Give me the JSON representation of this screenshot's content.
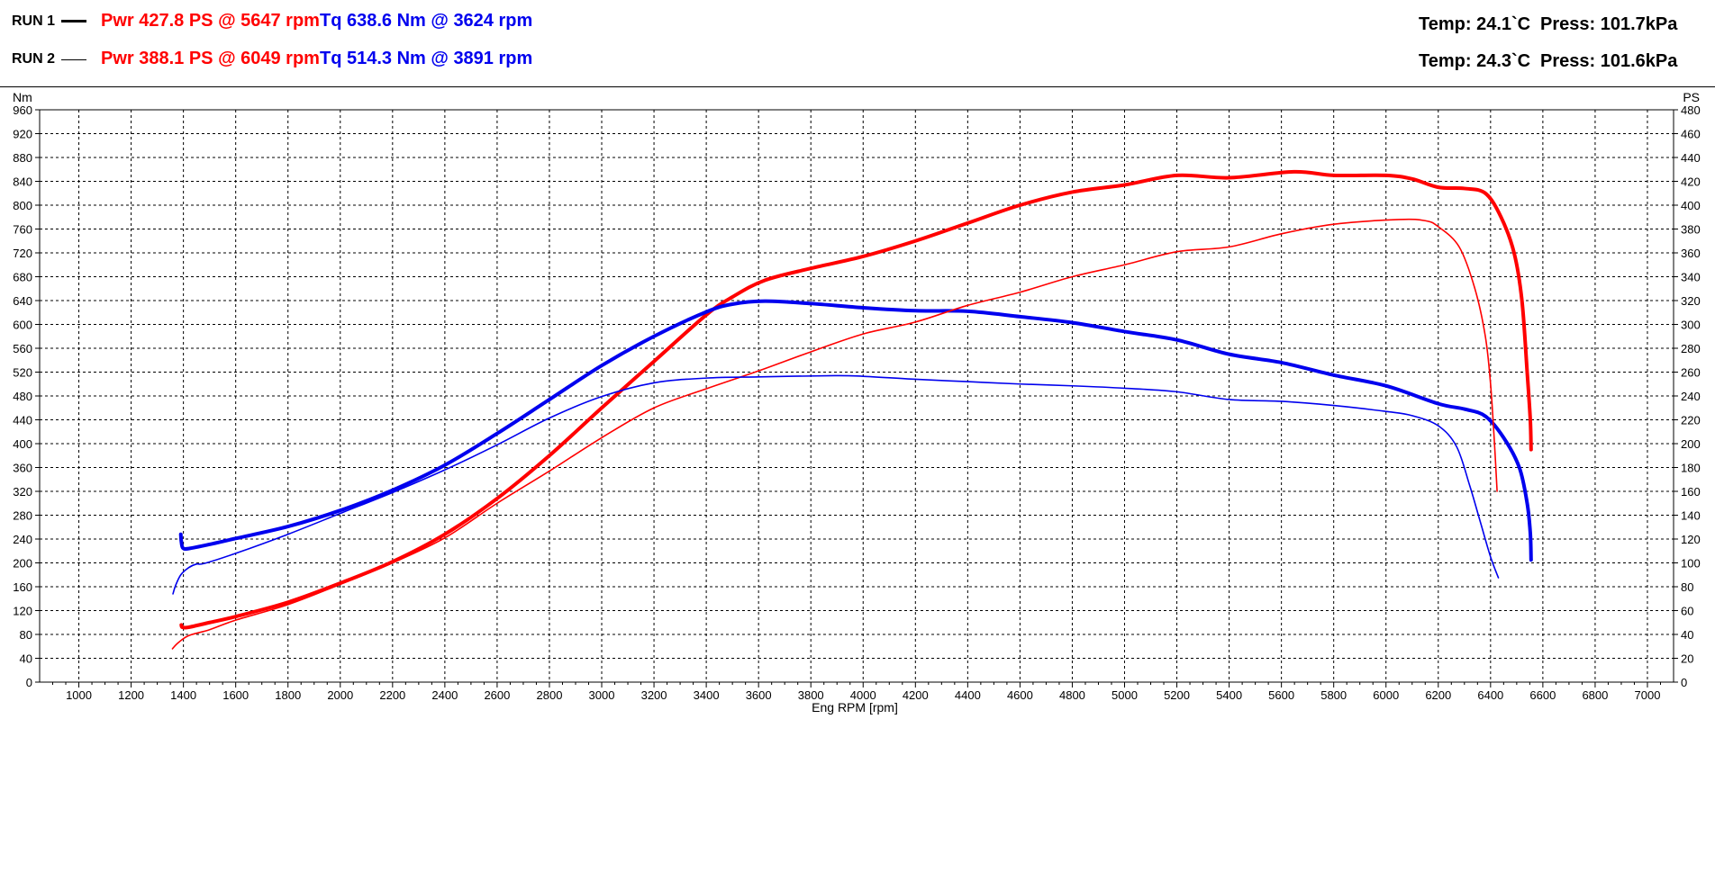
{
  "runs": [
    {
      "label": "RUN 1",
      "power_text": "Pwr  427.8 PS @ 5647 rpm",
      "torque_text": "Tq 638.6 Nm @ 3624 rpm",
      "temp_text": "Temp: 24.1`C",
      "press_text": "Press: 101.7kPa"
    },
    {
      "label": "RUN 2",
      "power_text": "Pwr  388.1 PS @ 6049 rpm",
      "torque_text": "Tq 514.3 Nm @ 3891 rpm",
      "temp_text": "Temp: 24.3`C",
      "press_text": "Press: 101.6kPa"
    }
  ],
  "chart_data": {
    "type": "line",
    "xlabel": "Eng RPM [rpm]",
    "ylabel_left": "Nm",
    "ylabel_right": "PS",
    "xlim": [
      850,
      7100
    ],
    "xticks": [
      1000,
      1200,
      1400,
      1600,
      1800,
      2000,
      2200,
      2400,
      2600,
      2800,
      3000,
      3200,
      3400,
      3600,
      3800,
      4000,
      4200,
      4400,
      4600,
      4800,
      5000,
      5200,
      5400,
      5600,
      5800,
      6000,
      6200,
      6400,
      6600,
      6800,
      7000
    ],
    "ylim_left": [
      0,
      960
    ],
    "yticks_left": [
      0,
      40,
      80,
      120,
      160,
      200,
      240,
      280,
      320,
      360,
      400,
      440,
      480,
      520,
      560,
      600,
      640,
      680,
      720,
      760,
      800,
      840,
      880,
      920,
      960
    ],
    "ylim_right": [
      0,
      480
    ],
    "yticks_right": [
      0,
      20,
      40,
      60,
      80,
      100,
      120,
      140,
      160,
      180,
      200,
      220,
      240,
      260,
      280,
      300,
      320,
      340,
      360,
      380,
      400,
      420,
      440,
      460,
      480
    ],
    "grid": true,
    "colors": {
      "power": "#ff0000",
      "torque": "#0000ee"
    },
    "series": [
      {
        "run": "RUN 1",
        "quantity": "power",
        "unit": "PS",
        "axis": "right",
        "line": "thick",
        "points": [
          [
            1392,
            48
          ],
          [
            1396,
            46
          ],
          [
            1420,
            46
          ],
          [
            1500,
            50
          ],
          [
            1600,
            55
          ],
          [
            1800,
            67
          ],
          [
            2000,
            83
          ],
          [
            2200,
            101
          ],
          [
            2400,
            124
          ],
          [
            2600,
            154
          ],
          [
            2800,
            190
          ],
          [
            3000,
            230
          ],
          [
            3200,
            269
          ],
          [
            3400,
            308
          ],
          [
            3500,
            323
          ],
          [
            3624,
            337
          ],
          [
            3800,
            347
          ],
          [
            4000,
            357
          ],
          [
            4200,
            370
          ],
          [
            4400,
            385
          ],
          [
            4600,
            400
          ],
          [
            4800,
            411
          ],
          [
            5000,
            417
          ],
          [
            5200,
            425
          ],
          [
            5400,
            423
          ],
          [
            5647,
            428
          ],
          [
            5800,
            425
          ],
          [
            6000,
            425
          ],
          [
            6100,
            422
          ],
          [
            6200,
            415
          ],
          [
            6300,
            414
          ],
          [
            6380,
            410
          ],
          [
            6440,
            390
          ],
          [
            6490,
            360
          ],
          [
            6520,
            320
          ],
          [
            6540,
            260
          ],
          [
            6552,
            220
          ],
          [
            6555,
            195
          ]
        ]
      },
      {
        "run": "RUN 1",
        "quantity": "torque",
        "unit": "Nm",
        "axis": "left",
        "line": "thick",
        "points": [
          [
            1390,
            248
          ],
          [
            1392,
            236
          ],
          [
            1398,
            225
          ],
          [
            1420,
            224
          ],
          [
            1500,
            231
          ],
          [
            1600,
            241
          ],
          [
            1800,
            261
          ],
          [
            2000,
            288
          ],
          [
            2200,
            322
          ],
          [
            2400,
            364
          ],
          [
            2600,
            417
          ],
          [
            2800,
            474
          ],
          [
            3000,
            531
          ],
          [
            3200,
            580
          ],
          [
            3400,
            621
          ],
          [
            3500,
            634
          ],
          [
            3624,
            639
          ],
          [
            3800,
            635
          ],
          [
            4000,
            628
          ],
          [
            4200,
            623
          ],
          [
            4400,
            622
          ],
          [
            4600,
            613
          ],
          [
            4800,
            603
          ],
          [
            5000,
            588
          ],
          [
            5200,
            574
          ],
          [
            5400,
            550
          ],
          [
            5600,
            536
          ],
          [
            5800,
            515
          ],
          [
            6000,
            497
          ],
          [
            6200,
            467
          ],
          [
            6300,
            458
          ],
          [
            6380,
            446
          ],
          [
            6450,
            410
          ],
          [
            6510,
            360
          ],
          [
            6540,
            300
          ],
          [
            6552,
            250
          ],
          [
            6555,
            205
          ]
        ]
      },
      {
        "run": "RUN 2",
        "quantity": "power",
        "unit": "PS",
        "axis": "right",
        "line": "thin",
        "points": [
          [
            1358,
            28
          ],
          [
            1380,
            33
          ],
          [
            1420,
            39
          ],
          [
            1500,
            44
          ],
          [
            1600,
            52
          ],
          [
            1800,
            65
          ],
          [
            2000,
            82
          ],
          [
            2200,
            100
          ],
          [
            2400,
            121
          ],
          [
            2600,
            150
          ],
          [
            2800,
            177
          ],
          [
            3000,
            205
          ],
          [
            3200,
            230
          ],
          [
            3400,
            246
          ],
          [
            3600,
            261
          ],
          [
            3800,
            277
          ],
          [
            4000,
            292
          ],
          [
            4200,
            302
          ],
          [
            4400,
            316
          ],
          [
            4600,
            327
          ],
          [
            4800,
            340
          ],
          [
            5000,
            350
          ],
          [
            5200,
            361
          ],
          [
            5400,
            365
          ],
          [
            5600,
            376
          ],
          [
            5800,
            384
          ],
          [
            6049,
            388
          ],
          [
            6150,
            387
          ],
          [
            6200,
            382
          ],
          [
            6280,
            365
          ],
          [
            6340,
            330
          ],
          [
            6380,
            290
          ],
          [
            6400,
            250
          ],
          [
            6415,
            200
          ],
          [
            6425,
            160
          ]
        ]
      },
      {
        "run": "RUN 2",
        "quantity": "torque",
        "unit": "Nm",
        "axis": "left",
        "line": "thin",
        "points": [
          [
            1360,
            148
          ],
          [
            1370,
            162
          ],
          [
            1390,
            180
          ],
          [
            1420,
            192
          ],
          [
            1450,
            198
          ],
          [
            1480,
            199
          ],
          [
            1600,
            216
          ],
          [
            1800,
            248
          ],
          [
            2000,
            283
          ],
          [
            2200,
            318
          ],
          [
            2400,
            356
          ],
          [
            2600,
            398
          ],
          [
            2800,
            443
          ],
          [
            3000,
            479
          ],
          [
            3200,
            502
          ],
          [
            3400,
            510
          ],
          [
            3600,
            512
          ],
          [
            3891,
            514
          ],
          [
            4000,
            513
          ],
          [
            4200,
            508
          ],
          [
            4400,
            504
          ],
          [
            4600,
            500
          ],
          [
            4800,
            497
          ],
          [
            5000,
            493
          ],
          [
            5200,
            487
          ],
          [
            5400,
            474
          ],
          [
            5600,
            471
          ],
          [
            5800,
            464
          ],
          [
            6000,
            454
          ],
          [
            6100,
            447
          ],
          [
            6200,
            430
          ],
          [
            6270,
            395
          ],
          [
            6320,
            330
          ],
          [
            6360,
            270
          ],
          [
            6400,
            210
          ],
          [
            6430,
            175
          ]
        ]
      }
    ]
  }
}
